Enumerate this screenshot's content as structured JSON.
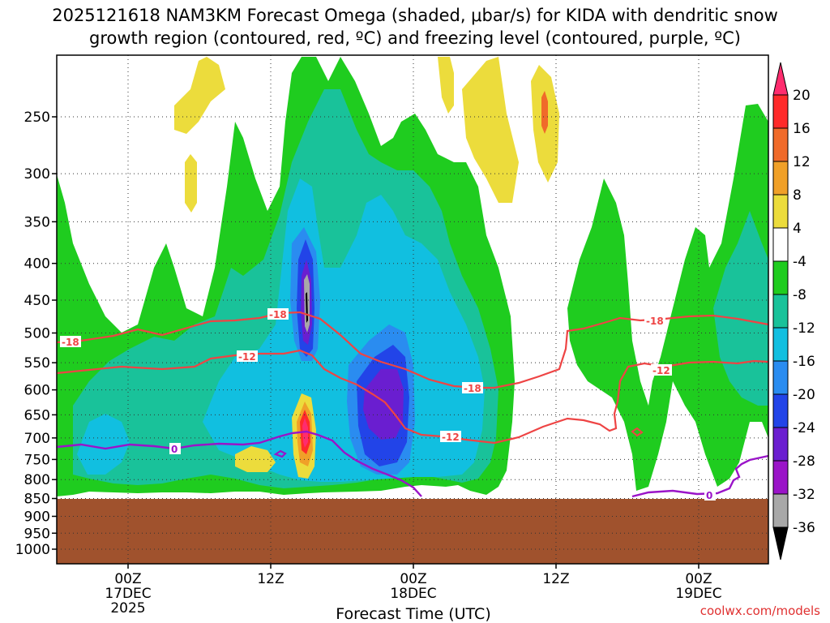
{
  "chart_data": {
    "type": "heatmap",
    "title_line1": "2025121618 NAM3KM Forecast Omega (shaded, μbar/s) for KIDA with dendritic snow",
    "title_line2": "growth region (contoured, red, ºC) and freezing level (contoured, purple, ºC)",
    "xlabel": "Forecast Time (UTC)",
    "ylabel": "",
    "y_axis_pressure_hpa": [
      250,
      300,
      350,
      400,
      450,
      500,
      550,
      600,
      650,
      700,
      750,
      800,
      850,
      900,
      950,
      1000
    ],
    "x_ticks": [
      {
        "label": "00Z",
        "sub1": "17DEC",
        "sub2": "2025",
        "hours": 6
      },
      {
        "label": "12Z",
        "sub1": "",
        "sub2": "",
        "hours": 18
      },
      {
        "label": "00Z",
        "sub1": "18DEC",
        "sub2": "",
        "hours": 30
      },
      {
        "label": "12Z",
        "sub1": "",
        "sub2": "",
        "hours": 42
      },
      {
        "label": "00Z",
        "sub1": "19DEC",
        "sub2": "",
        "hours": 54
      }
    ],
    "colorbar_labels": [
      "20",
      "16",
      "12",
      "8",
      "4",
      "-4",
      "-8",
      "-12",
      "-16",
      "-20",
      "-24",
      "-28",
      "-32",
      "-36"
    ],
    "colorbar_colors": [
      "#ff2c6e",
      "#ff2a2a",
      "#f06a2a",
      "#f0a028",
      "#ecdc3c",
      "#ffffff",
      "#1fcc1f",
      "#19c29a",
      "#11bfe0",
      "#2a8cf0",
      "#2244e8",
      "#6a1ed0",
      "#9a14c8",
      "#a8a8a8",
      "#000000"
    ],
    "contours": [
      {
        "label": "-18",
        "color": "#ee4444",
        "type": "dendritic"
      },
      {
        "label": "-12",
        "color": "#ee4444",
        "type": "dendritic"
      },
      {
        "label": "0",
        "color": "#9a14c8",
        "type": "freezing"
      }
    ],
    "omega_features": [
      {
        "hours": 20.8,
        "pressure_hpa": 450,
        "omega": -36
      },
      {
        "hours": 27.7,
        "pressure_hpa": 620,
        "omega": -28
      },
      {
        "hours": 20.8,
        "pressure_hpa": 680,
        "omega": 20
      }
    ],
    "terrain_color": "#a0522d",
    "credit": "coolwx.com/models"
  }
}
